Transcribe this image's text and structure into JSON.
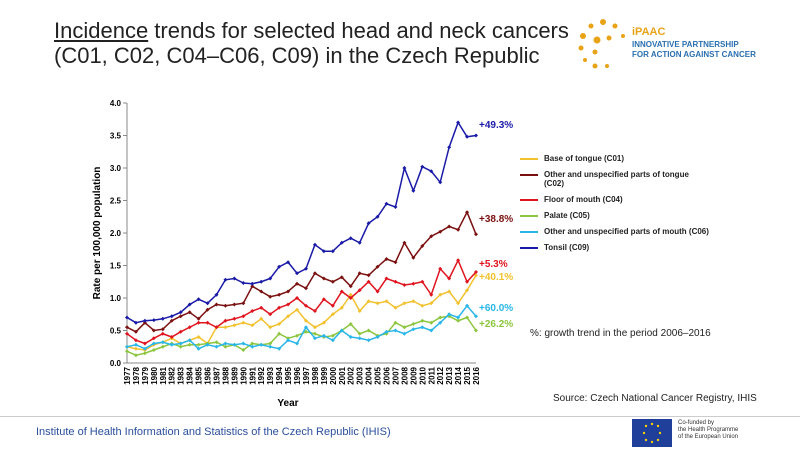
{
  "chart_data": {
    "type": "line",
    "title_underlined": "Incidence",
    "title_rest": " trends for selected head and neck cancers (C01, C02, C04–C06, C09) in the Czech Republic",
    "xlabel": "Year",
    "ylabel": "Rate per 100,000 population",
    "categories": [
      "1977",
      "1978",
      "1979",
      "1980",
      "1981",
      "1982",
      "1983",
      "1984",
      "1985",
      "1986",
      "1987",
      "1988",
      "1989",
      "1990",
      "1991",
      "1992",
      "1993",
      "1994",
      "1995",
      "1996",
      "1997",
      "1998",
      "1999",
      "2000",
      "2001",
      "2002",
      "2003",
      "2004",
      "2005",
      "2006",
      "2007",
      "2008",
      "2009",
      "2010",
      "2011",
      "2012",
      "2013",
      "2014",
      "2015",
      "2016"
    ],
    "ylim": [
      0,
      4
    ],
    "yticks": [
      {
        "value": 0,
        "label": "0.0"
      },
      {
        "value": 0.5,
        "label": "0.5"
      },
      {
        "value": 1,
        "label": "1.0"
      },
      {
        "value": 1.5,
        "label": "1.5"
      },
      {
        "value": 2,
        "label": "2.0"
      },
      {
        "value": 2.5,
        "label": "2.5"
      },
      {
        "value": 3,
        "label": "3.0"
      },
      {
        "value": 3.5,
        "label": "3.5"
      },
      {
        "value": 4,
        "label": "4.0"
      }
    ],
    "series": [
      {
        "name": "Base of tongue (C01)",
        "color": "#f2c12e",
        "label": "+40.1%",
        "values": [
          0.25,
          0.22,
          0.2,
          0.28,
          0.32,
          0.38,
          0.3,
          0.35,
          0.4,
          0.3,
          0.55,
          0.55,
          0.58,
          0.62,
          0.58,
          0.68,
          0.55,
          0.6,
          0.72,
          0.82,
          0.65,
          0.55,
          0.62,
          0.75,
          0.85,
          1.05,
          0.8,
          0.95,
          0.92,
          0.95,
          0.85,
          0.92,
          0.95,
          0.88,
          0.92,
          1.05,
          1.1,
          0.92,
          1.12,
          1.35
        ]
      },
      {
        "name": "Other and unspecified parts of tongue (C02)",
        "color": "#7b1010",
        "label": "+38.8%",
        "values": [
          0.55,
          0.48,
          0.62,
          0.5,
          0.52,
          0.65,
          0.72,
          0.78,
          0.68,
          0.82,
          0.9,
          0.88,
          0.9,
          0.92,
          1.18,
          1.1,
          1.02,
          1.05,
          1.1,
          1.22,
          1.15,
          1.38,
          1.3,
          1.25,
          1.32,
          1.18,
          1.38,
          1.35,
          1.48,
          1.6,
          1.55,
          1.85,
          1.62,
          1.8,
          1.95,
          2.02,
          2.1,
          2.05,
          2.32,
          1.98
        ]
      },
      {
        "name": "Floor of mouth (C04)",
        "color": "#e0141e",
        "label": "+5.3%",
        "values": [
          0.45,
          0.35,
          0.3,
          0.38,
          0.45,
          0.4,
          0.48,
          0.55,
          0.62,
          0.62,
          0.55,
          0.65,
          0.68,
          0.72,
          0.8,
          0.85,
          0.75,
          0.85,
          0.9,
          1.0,
          0.88,
          0.8,
          0.98,
          0.88,
          1.1,
          1.0,
          1.12,
          1.25,
          1.1,
          1.3,
          1.25,
          1.2,
          1.22,
          1.25,
          1.05,
          1.45,
          1.3,
          1.58,
          1.25,
          1.4
        ]
      },
      {
        "name": "Palate (C05)",
        "color": "#8cc63f",
        "label": "+26.2%",
        "values": [
          0.18,
          0.12,
          0.15,
          0.2,
          0.25,
          0.3,
          0.25,
          0.28,
          0.28,
          0.3,
          0.32,
          0.25,
          0.28,
          0.2,
          0.3,
          0.28,
          0.3,
          0.45,
          0.38,
          0.42,
          0.48,
          0.45,
          0.4,
          0.42,
          0.5,
          0.6,
          0.45,
          0.5,
          0.42,
          0.45,
          0.62,
          0.55,
          0.6,
          0.65,
          0.62,
          0.7,
          0.72,
          0.65,
          0.7,
          0.5
        ]
      },
      {
        "name": "Other and unspecified parts of mouth (C06)",
        "color": "#29b6e8",
        "label": "+60.0%",
        "values": [
          0.25,
          0.28,
          0.22,
          0.3,
          0.32,
          0.28,
          0.3,
          0.35,
          0.22,
          0.28,
          0.25,
          0.3,
          0.28,
          0.3,
          0.25,
          0.28,
          0.25,
          0.22,
          0.35,
          0.3,
          0.55,
          0.38,
          0.42,
          0.35,
          0.5,
          0.4,
          0.38,
          0.35,
          0.4,
          0.48,
          0.5,
          0.45,
          0.52,
          0.55,
          0.5,
          0.62,
          0.75,
          0.7,
          0.88,
          0.72
        ]
      },
      {
        "name": "Tonsil (C09)",
        "color": "#1a1aa8",
        "label": "+49.3%",
        "values": [
          0.7,
          0.62,
          0.65,
          0.66,
          0.68,
          0.72,
          0.78,
          0.9,
          0.98,
          0.92,
          1.05,
          1.28,
          1.3,
          1.23,
          1.22,
          1.25,
          1.3,
          1.48,
          1.55,
          1.38,
          1.45,
          1.82,
          1.72,
          1.72,
          1.85,
          1.92,
          1.85,
          2.15,
          2.25,
          2.45,
          2.4,
          3.0,
          2.65,
          3.02,
          2.95,
          2.78,
          3.32,
          3.7,
          3.48,
          3.5
        ]
      }
    ],
    "note": "%: growth trend in the period 2006–2016",
    "source": "Source: Czech National Cancer Registry, IHIS"
  },
  "footer": "Institute of Health Information and Statistics of the Czech Republic (IHIS)",
  "logo": {
    "name": "iPAAC",
    "line1": "INNOVATIVE PARTNERSHIP",
    "line2": "FOR ACTION AGAINST CANCER"
  },
  "eu": {
    "line1": "Co-funded by",
    "line2": "the Health Programme",
    "line3": "of the European Union"
  }
}
